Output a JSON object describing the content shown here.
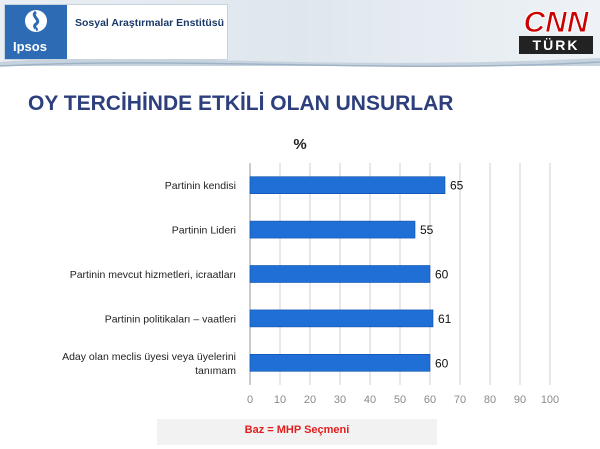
{
  "header": {
    "brand": "Ipsos",
    "institute": "Sosyal Araştırmalar Enstitüsü",
    "partner_logo": {
      "cnn": "CNN",
      "turk": "TÜRK"
    }
  },
  "slide": {
    "title": "OY TERCİHİNDE ETKİLİ OLAN UNSURLAR",
    "base_note": "Baz = MHP Seçmeni"
  },
  "colors": {
    "bar": "#1f6fd6",
    "bar_edge": "#0f4fa8",
    "title": "#2d3f7c",
    "note": "#e02020",
    "ipsos": "#2e6bb5",
    "cnn_red": "#cc0000"
  },
  "chart_data": {
    "type": "bar",
    "orientation": "horizontal",
    "title": "%",
    "categories": [
      [
        "Partinin kendisi"
      ],
      [
        "Partinin Lideri"
      ],
      [
        "Partinin mevcut hizmetleri, icraatları"
      ],
      [
        "Partinin politikaları – vaatleri"
      ],
      [
        "Aday olan meclis üyesi veya  üyelerini",
        "tanımam"
      ]
    ],
    "values": [
      65,
      55,
      60,
      61,
      60
    ],
    "xlim": [
      0,
      100
    ],
    "xticks": [
      0,
      10,
      20,
      30,
      40,
      50,
      60,
      70,
      80,
      90,
      100
    ],
    "grid": true,
    "data_labels": true
  }
}
